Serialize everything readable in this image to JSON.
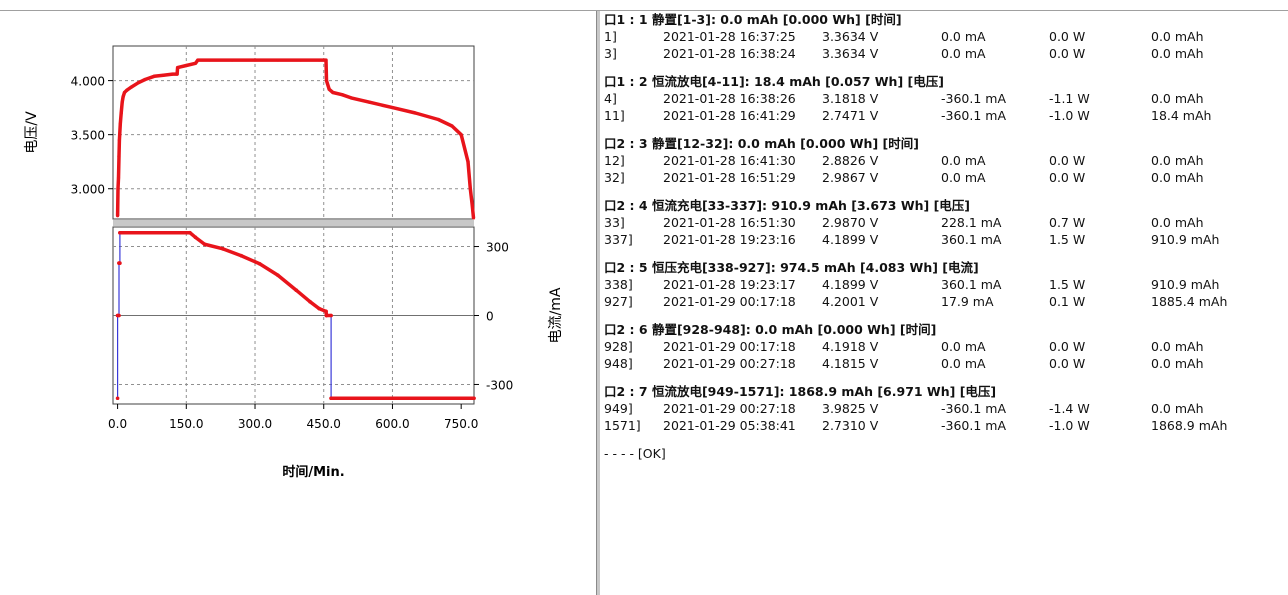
{
  "chart_data": [
    {
      "type": "line",
      "title": "",
      "ylabel": "电压/V",
      "xlabel": "",
      "ylim": [
        2.72,
        4.32
      ],
      "xlim": [
        -10,
        778
      ],
      "yticks": [
        "3.000",
        "3.500",
        "4.000"
      ],
      "ytick_values": [
        3.0,
        3.5,
        4.0
      ],
      "grid": true,
      "series": [
        {
          "color": "#e8141b",
          "x": [
            0,
            1,
            2,
            3,
            4,
            6,
            8,
            10,
            12,
            15,
            20,
            30,
            45,
            60,
            80,
            100,
            120,
            130,
            131,
            150,
            170,
            175,
            200,
            250,
            300,
            350,
            400,
            440,
            455,
            456,
            462,
            470,
            490,
            510,
            550,
            600,
            650,
            700,
            730,
            750,
            765,
            770,
            774,
            777
          ],
          "y": [
            2.75,
            3.0,
            3.1,
            3.3,
            3.45,
            3.6,
            3.7,
            3.8,
            3.85,
            3.89,
            3.91,
            3.94,
            3.98,
            4.01,
            4.04,
            4.05,
            4.06,
            4.06,
            4.12,
            4.14,
            4.16,
            4.19,
            4.19,
            4.19,
            4.19,
            4.19,
            4.19,
            4.19,
            4.19,
            4.0,
            3.92,
            3.89,
            3.87,
            3.84,
            3.8,
            3.75,
            3.7,
            3.64,
            3.58,
            3.5,
            3.25,
            3.0,
            2.85,
            2.73
          ]
        }
      ]
    },
    {
      "type": "line",
      "title": "",
      "ylabel": "电流/mA",
      "xlabel": "时间/Min.",
      "ylim": [
        -385,
        385
      ],
      "xlim": [
        -10,
        778
      ],
      "xticks": [
        "0.0",
        "150.0",
        "300.0",
        "450.0",
        "600.0",
        "750.0"
      ],
      "xtick_values": [
        0,
        150,
        300,
        450,
        600,
        750
      ],
      "yticks": [
        "300",
        "0",
        "-300"
      ],
      "ytick_values": [
        300,
        0,
        -300
      ],
      "grid": true,
      "series": [
        {
          "color": "#e8141b",
          "line_color": "#3a3ad8",
          "x": [
            0,
            0,
            3,
            3,
            5,
            5,
            158,
            170,
            190,
            230,
            270,
            310,
            350,
            390,
            420,
            440,
            455,
            456,
            456,
            466,
            466,
            778
          ],
          "y": [
            -360,
            0,
            0,
            228,
            228,
            360,
            360,
            340,
            310,
            290,
            260,
            225,
            175,
            110,
            60,
            30,
            18,
            0,
            0,
            0,
            -360,
            -360
          ]
        }
      ]
    }
  ],
  "log": {
    "steps": [
      {
        "header": "口1 : 1 静置[1-3]:  0.0   mAh  [0.000 Wh] [时间]",
        "rows": [
          {
            "idx": "1]",
            "time": "2021-01-28 16:37:25",
            "voltage": "3.3634  V",
            "current": "0.0  mA",
            "power": "0.0  W",
            "capacity": "0.0  mAh"
          },
          {
            "idx": "3]",
            "time": "2021-01-28 16:38:24",
            "voltage": "3.3634  V",
            "current": "0.0  mA",
            "power": "0.0  W",
            "capacity": "0.0  mAh"
          }
        ]
      },
      {
        "header": "口1 : 2 恒流放电[4-11]:  18.4   mAh  [0.057 Wh] [电压]",
        "rows": [
          {
            "idx": "4]",
            "time": "2021-01-28 16:38:26",
            "voltage": "3.1818  V",
            "current": "-360.1  mA",
            "power": "-1.1  W",
            "capacity": "0.0  mAh"
          },
          {
            "idx": "11]",
            "time": "2021-01-28 16:41:29",
            "voltage": "2.7471  V",
            "current": "-360.1  mA",
            "power": "-1.0  W",
            "capacity": "18.4  mAh"
          }
        ]
      },
      {
        "header": "口2 : 3 静置[12-32]:  0.0   mAh  [0.000 Wh] [时间]",
        "rows": [
          {
            "idx": "12]",
            "time": "2021-01-28 16:41:30",
            "voltage": "2.8826  V",
            "current": "0.0  mA",
            "power": "0.0  W",
            "capacity": "0.0  mAh"
          },
          {
            "idx": "32]",
            "time": "2021-01-28 16:51:29",
            "voltage": "2.9867  V",
            "current": "0.0  mA",
            "power": "0.0  W",
            "capacity": "0.0  mAh"
          }
        ]
      },
      {
        "header": "口2 : 4 恒流充电[33-337]:  910.9   mAh  [3.673 Wh] [电压]",
        "rows": [
          {
            "idx": "33]",
            "time": "2021-01-28 16:51:30",
            "voltage": "2.9870  V",
            "current": "228.1  mA",
            "power": "0.7  W",
            "capacity": "0.0  mAh"
          },
          {
            "idx": "337]",
            "time": "2021-01-28 19:23:16",
            "voltage": "4.1899  V",
            "current": "360.1  mA",
            "power": "1.5  W",
            "capacity": "910.9  mAh"
          }
        ]
      },
      {
        "header": "口2 : 5 恒压充电[338-927]:  974.5   mAh  [4.083 Wh] [电流]",
        "rows": [
          {
            "idx": "338]",
            "time": "2021-01-28 19:23:17",
            "voltage": "4.1899  V",
            "current": "360.1  mA",
            "power": "1.5  W",
            "capacity": "910.9  mAh"
          },
          {
            "idx": "927]",
            "time": "2021-01-29 00:17:18",
            "voltage": "4.2001  V",
            "current": "17.9  mA",
            "power": "0.1  W",
            "capacity": "1885.4  mAh"
          }
        ]
      },
      {
        "header": "口2 : 6 静置[928-948]:  0.0   mAh  [0.000 Wh] [时间]",
        "rows": [
          {
            "idx": "928]",
            "time": "2021-01-29 00:17:18",
            "voltage": "4.1918  V",
            "current": "0.0  mA",
            "power": "0.0  W",
            "capacity": "0.0  mAh"
          },
          {
            "idx": "948]",
            "time": "2021-01-29 00:27:18",
            "voltage": "4.1815  V",
            "current": "0.0  mA",
            "power": "0.0  W",
            "capacity": "0.0  mAh"
          }
        ]
      },
      {
        "header": "口2 : 7 恒流放电[949-1571]:  1868.9   mAh  [6.971 Wh] [电压]",
        "rows": [
          {
            "idx": "949]",
            "time": "2021-01-29 00:27:18",
            "voltage": "3.9825  V",
            "current": "-360.1  mA",
            "power": "-1.4  W",
            "capacity": "0.0  mAh"
          },
          {
            "idx": "1571]",
            "time": "2021-01-29 05:38:41",
            "voltage": "2.7310  V",
            "current": "-360.1  mA",
            "power": "-1.0  W",
            "capacity": "1868.9  mAh"
          }
        ]
      }
    ],
    "footer": "- - - - [OK]"
  }
}
